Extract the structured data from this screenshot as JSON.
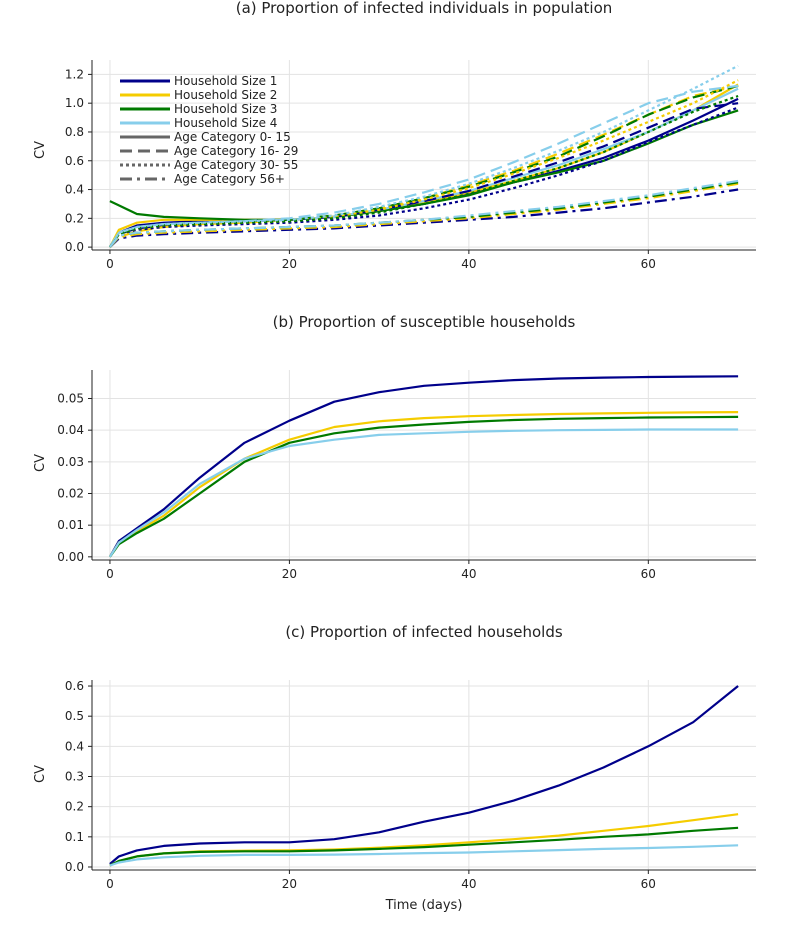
{
  "chart_data": [
    {
      "type": "line",
      "title": "(a) Proportion of infected individuals in population",
      "xlabel": "",
      "ylabel": "CV",
      "xlim": [
        -2,
        72
      ],
      "ylim": [
        -0.02,
        1.3
      ],
      "xticks": [
        0,
        20,
        40,
        60
      ],
      "yticks": [
        0.0,
        0.2,
        0.4,
        0.6,
        0.8,
        1.0,
        1.2
      ],
      "ytick_labels": [
        "0.0",
        "0.2",
        "0.4",
        "0.6",
        "0.8",
        "1.0",
        "1.2"
      ],
      "legend_position": "top-left",
      "legend": [
        {
          "label": "Household Size 1",
          "color": "#00008b",
          "dash": "solid"
        },
        {
          "label": "Household Size 2",
          "color": "#f5cc00",
          "dash": "solid"
        },
        {
          "label": "Household Size 3",
          "color": "#007a00",
          "dash": "solid"
        },
        {
          "label": "Household Size 4",
          "color": "#87ceeb",
          "dash": "solid"
        },
        {
          "label": "Age Category 0- 15",
          "color": "#666666",
          "dash": "solid"
        },
        {
          "label": "Age Category 16- 29",
          "color": "#666666",
          "dash": "dash"
        },
        {
          "label": "Age Category 30- 55",
          "color": "#666666",
          "dash": "dot"
        },
        {
          "label": "Age Category 56+",
          "color": "#666666",
          "dash": "dashdot"
        }
      ],
      "x": [
        0,
        1,
        3,
        6,
        10,
        15,
        20,
        25,
        30,
        35,
        40,
        45,
        50,
        55,
        60,
        65,
        70
      ],
      "series": [
        {
          "name": "Household Size 1 / Age 0-15",
          "color": "#00008b",
          "dash": "solid",
          "values": [
            0,
            0.1,
            0.15,
            0.17,
            0.18,
            0.18,
            0.19,
            0.21,
            0.25,
            0.3,
            0.37,
            0.45,
            0.53,
            0.62,
            0.74,
            0.88,
            1.03
          ]
        },
        {
          "name": "Household Size 2 / Age 0-15",
          "color": "#f5cc00",
          "dash": "solid",
          "values": [
            0,
            0.12,
            0.17,
            0.19,
            0.19,
            0.19,
            0.19,
            0.21,
            0.25,
            0.31,
            0.38,
            0.46,
            0.55,
            0.66,
            0.8,
            0.95,
            1.13
          ]
        },
        {
          "name": "Household Size 3 / Age 0-15",
          "color": "#007a00",
          "dash": "solid",
          "values": [
            0.32,
            0.29,
            0.23,
            0.21,
            0.2,
            0.19,
            0.19,
            0.21,
            0.25,
            0.3,
            0.36,
            0.45,
            0.52,
            0.6,
            0.72,
            0.85,
            0.95
          ]
        },
        {
          "name": "Household Size 4 / Age 0-15",
          "color": "#87ceeb",
          "dash": "solid",
          "values": [
            0,
            0.1,
            0.14,
            0.16,
            0.17,
            0.18,
            0.19,
            0.21,
            0.26,
            0.32,
            0.39,
            0.48,
            0.57,
            0.68,
            0.8,
            0.95,
            1.1
          ]
        },
        {
          "name": "Household Size 1 / Age 16-29",
          "color": "#00008b",
          "dash": "dash",
          "values": [
            0,
            0.09,
            0.13,
            0.15,
            0.17,
            0.18,
            0.19,
            0.21,
            0.26,
            0.32,
            0.39,
            0.49,
            0.59,
            0.7,
            0.83,
            0.96,
            1.0
          ]
        },
        {
          "name": "Household Size 2 / Age 16-29",
          "color": "#f5cc00",
          "dash": "dash",
          "values": [
            0,
            0.07,
            0.11,
            0.14,
            0.16,
            0.17,
            0.19,
            0.22,
            0.27,
            0.34,
            0.43,
            0.53,
            0.65,
            0.78,
            0.92,
            1.05,
            1.12
          ]
        },
        {
          "name": "Household Size 3 / Age 16-29",
          "color": "#007a00",
          "dash": "dash",
          "values": [
            0,
            0.09,
            0.14,
            0.16,
            0.17,
            0.18,
            0.19,
            0.22,
            0.27,
            0.34,
            0.42,
            0.52,
            0.63,
            0.77,
            0.92,
            1.04,
            1.12
          ]
        },
        {
          "name": "Household Size 4 / Age 16-29",
          "color": "#87ceeb",
          "dash": "dash",
          "values": [
            0,
            0.1,
            0.14,
            0.16,
            0.17,
            0.18,
            0.2,
            0.24,
            0.3,
            0.38,
            0.47,
            0.59,
            0.72,
            0.86,
            1.0,
            1.08,
            1.12
          ]
        },
        {
          "name": "Household Size 1 / Age 30-55",
          "color": "#00008b",
          "dash": "dot",
          "values": [
            0,
            0.09,
            0.12,
            0.14,
            0.15,
            0.16,
            0.17,
            0.19,
            0.22,
            0.27,
            0.33,
            0.41,
            0.5,
            0.6,
            0.73,
            0.85,
            0.97
          ]
        },
        {
          "name": "Household Size 2 / Age 30-55",
          "color": "#f5cc00",
          "dash": "dot",
          "values": [
            0,
            0.09,
            0.13,
            0.15,
            0.16,
            0.17,
            0.18,
            0.21,
            0.26,
            0.33,
            0.41,
            0.51,
            0.62,
            0.74,
            0.87,
            1.0,
            1.16
          ]
        },
        {
          "name": "Household Size 3 / Age 30-55",
          "color": "#007a00",
          "dash": "dot",
          "values": [
            0,
            0.09,
            0.13,
            0.15,
            0.16,
            0.17,
            0.18,
            0.2,
            0.24,
            0.3,
            0.37,
            0.46,
            0.55,
            0.66,
            0.8,
            0.94,
            1.05
          ]
        },
        {
          "name": "Household Size 4 / Age 30-55",
          "color": "#87ceeb",
          "dash": "dot",
          "values": [
            0,
            0.1,
            0.14,
            0.16,
            0.17,
            0.18,
            0.19,
            0.22,
            0.28,
            0.35,
            0.44,
            0.55,
            0.67,
            0.8,
            0.95,
            1.1,
            1.26
          ]
        },
        {
          "name": "Household Size 1 / Age 56+",
          "color": "#00008b",
          "dash": "dashdot",
          "values": [
            0,
            0.06,
            0.08,
            0.09,
            0.1,
            0.11,
            0.12,
            0.13,
            0.15,
            0.17,
            0.19,
            0.21,
            0.24,
            0.27,
            0.31,
            0.35,
            0.4
          ]
        },
        {
          "name": "Household Size 2 / Age 56+",
          "color": "#f5cc00",
          "dash": "dashdot",
          "values": [
            0,
            0.07,
            0.09,
            0.1,
            0.11,
            0.12,
            0.13,
            0.14,
            0.16,
            0.18,
            0.2,
            0.23,
            0.26,
            0.3,
            0.34,
            0.39,
            0.44
          ]
        },
        {
          "name": "Household Size 3 / Age 56+",
          "color": "#007a00",
          "dash": "dashdot",
          "values": [
            0,
            0.08,
            0.1,
            0.11,
            0.12,
            0.13,
            0.14,
            0.15,
            0.17,
            0.19,
            0.21,
            0.24,
            0.27,
            0.31,
            0.35,
            0.4,
            0.45
          ]
        },
        {
          "name": "Household Size 4 / Age 56+",
          "color": "#87ceeb",
          "dash": "dashdot",
          "values": [
            0,
            0.08,
            0.1,
            0.11,
            0.12,
            0.13,
            0.14,
            0.15,
            0.17,
            0.19,
            0.22,
            0.25,
            0.28,
            0.32,
            0.36,
            0.41,
            0.46
          ]
        }
      ]
    },
    {
      "type": "line",
      "title": "(b) Proportion of susceptible households",
      "xlabel": "",
      "ylabel": "CV",
      "xlim": [
        -2,
        72
      ],
      "ylim": [
        -0.001,
        0.059
      ],
      "xticks": [
        0,
        20,
        40,
        60
      ],
      "yticks": [
        0.0,
        0.01,
        0.02,
        0.03,
        0.04,
        0.05
      ],
      "ytick_labels": [
        "0.00",
        "0.01",
        "0.02",
        "0.03",
        "0.04",
        "0.05"
      ],
      "x": [
        0,
        1,
        3,
        6,
        10,
        15,
        20,
        25,
        30,
        35,
        40,
        45,
        50,
        55,
        60,
        65,
        70
      ],
      "series": [
        {
          "name": "Household Size 1",
          "color": "#00008b",
          "dash": "solid",
          "values": [
            0,
            0.005,
            0.009,
            0.015,
            0.025,
            0.036,
            0.043,
            0.049,
            0.052,
            0.054,
            0.055,
            0.0558,
            0.0563,
            0.0566,
            0.0568,
            0.0569,
            0.057
          ]
        },
        {
          "name": "Household Size 2",
          "color": "#f5cc00",
          "dash": "solid",
          "values": [
            0,
            0.0045,
            0.008,
            0.013,
            0.022,
            0.031,
            0.037,
            0.041,
            0.0428,
            0.0438,
            0.0444,
            0.0448,
            0.0451,
            0.0453,
            0.0455,
            0.0456,
            0.0457
          ]
        },
        {
          "name": "Household Size 3",
          "color": "#007a00",
          "dash": "solid",
          "values": [
            0,
            0.004,
            0.0075,
            0.012,
            0.02,
            0.03,
            0.036,
            0.039,
            0.0408,
            0.0418,
            0.0426,
            0.0432,
            0.0436,
            0.0438,
            0.044,
            0.0441,
            0.0442
          ]
        },
        {
          "name": "Household Size 4",
          "color": "#87ceeb",
          "dash": "solid",
          "values": [
            0,
            0.0045,
            0.0085,
            0.014,
            0.023,
            0.031,
            0.035,
            0.037,
            0.0385,
            0.039,
            0.0395,
            0.0398,
            0.04,
            0.0401,
            0.0402,
            0.0402,
            0.0402
          ]
        }
      ]
    },
    {
      "type": "line",
      "title": "(c) Proportion of infected households",
      "xlabel": "Time (days)",
      "ylabel": "CV",
      "xlim": [
        -2,
        72
      ],
      "ylim": [
        -0.01,
        0.62
      ],
      "xticks": [
        0,
        20,
        40,
        60
      ],
      "yticks": [
        0.0,
        0.1,
        0.2,
        0.3,
        0.4,
        0.5,
        0.6
      ],
      "ytick_labels": [
        "0.0",
        "0.1",
        "0.2",
        "0.3",
        "0.4",
        "0.5",
        "0.6"
      ],
      "x": [
        0,
        1,
        3,
        6,
        10,
        15,
        20,
        25,
        30,
        35,
        40,
        45,
        50,
        55,
        60,
        65,
        70
      ],
      "series": [
        {
          "name": "Household Size 1",
          "color": "#00008b",
          "dash": "solid",
          "values": [
            0.01,
            0.035,
            0.055,
            0.07,
            0.078,
            0.082,
            0.082,
            0.092,
            0.115,
            0.15,
            0.18,
            0.22,
            0.27,
            0.33,
            0.4,
            0.48,
            0.6
          ]
        },
        {
          "name": "Household Size 2",
          "color": "#f5cc00",
          "dash": "solid",
          "values": [
            0.005,
            0.02,
            0.035,
            0.045,
            0.052,
            0.054,
            0.055,
            0.058,
            0.064,
            0.072,
            0.082,
            0.092,
            0.104,
            0.12,
            0.136,
            0.155,
            0.175
          ]
        },
        {
          "name": "Household Size 3",
          "color": "#007a00",
          "dash": "solid",
          "values": [
            0.005,
            0.02,
            0.035,
            0.045,
            0.05,
            0.052,
            0.052,
            0.055,
            0.06,
            0.066,
            0.074,
            0.082,
            0.09,
            0.1,
            0.108,
            0.12,
            0.13
          ]
        },
        {
          "name": "Household Size 4",
          "color": "#87ceeb",
          "dash": "solid",
          "values": [
            0.005,
            0.015,
            0.025,
            0.032,
            0.037,
            0.04,
            0.04,
            0.041,
            0.043,
            0.046,
            0.048,
            0.052,
            0.056,
            0.06,
            0.063,
            0.067,
            0.072
          ]
        }
      ]
    }
  ]
}
